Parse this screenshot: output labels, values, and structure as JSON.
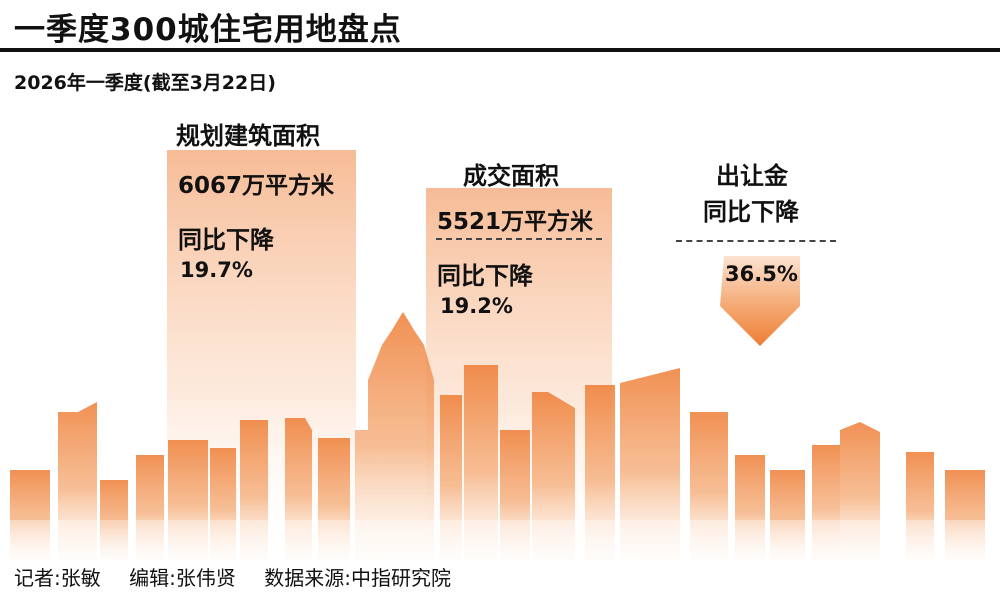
{
  "header": {
    "title": "一季度300城住宅用地盘点",
    "subtitle": "2026年一季度(截至3月22日)"
  },
  "chart_data": {
    "type": "bar",
    "categories": [
      "规划建筑面积",
      "成交面积",
      "出让金"
    ],
    "items": [
      {
        "category": "规划建筑面积",
        "value_text": "6067万平方米",
        "change_label": "同比下降",
        "change": "19.7%"
      },
      {
        "category": "成交面积",
        "value_text": "5521万平方米",
        "change_label": "同比下降",
        "change": "19.2%"
      },
      {
        "category": "出让金",
        "change_label": "同比下降",
        "change": "36.5%"
      }
    ],
    "series": [
      {
        "values": [
          -19.7,
          -19.2,
          -36.5
        ]
      }
    ]
  },
  "footer": {
    "reporter": "记者:张敏",
    "editor": "编辑:张伟贤",
    "source": "数据来源:中指研究院"
  },
  "colors": {
    "accent": "#ee7d35",
    "accent_light": "#f7c8a4",
    "text": "#111111"
  }
}
